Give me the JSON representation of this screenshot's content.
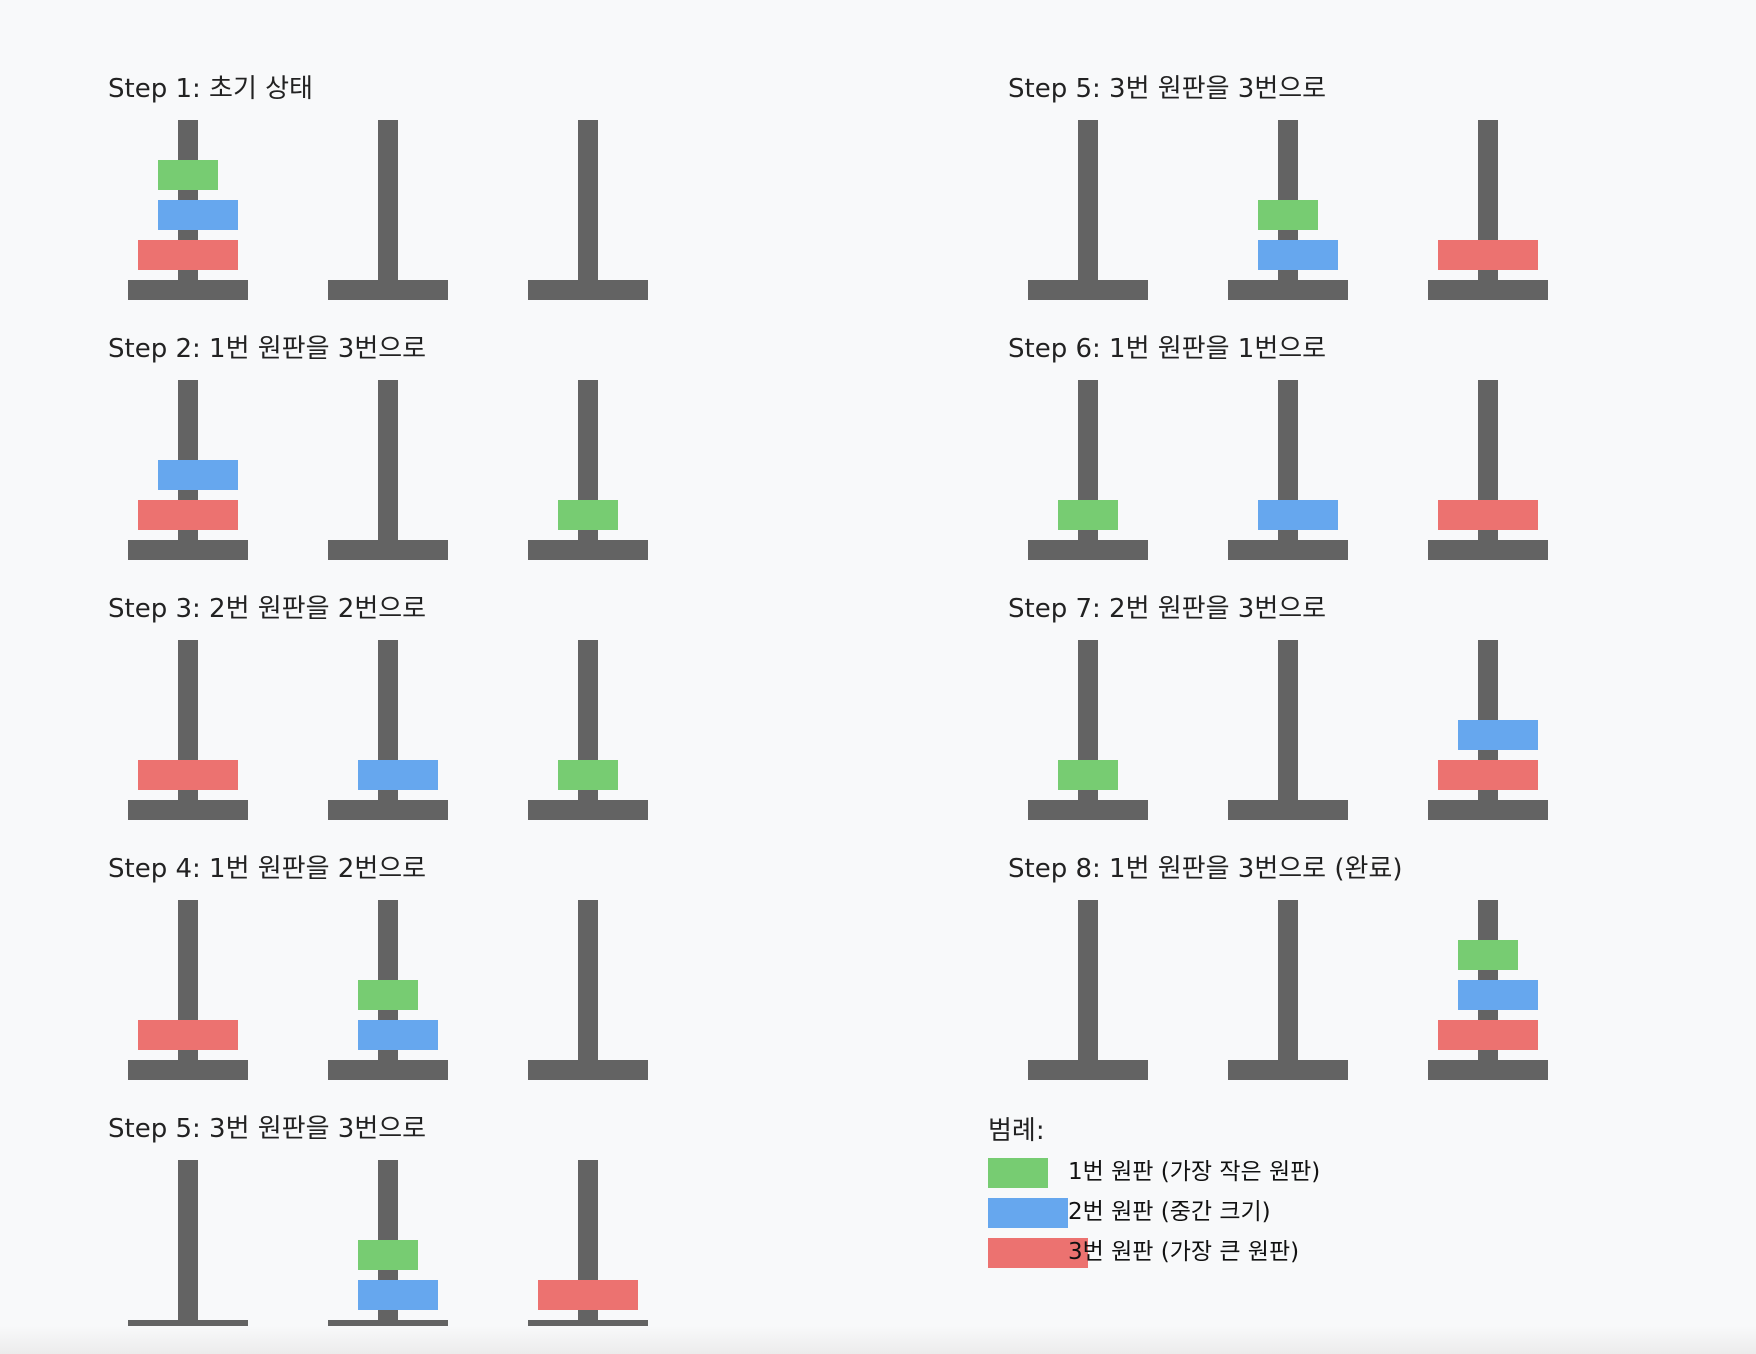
{
  "colors": {
    "pole": "#636363",
    "disk_1": "#77cc72",
    "disk_2": "#66a7ee",
    "disk_3": "#ec7270",
    "background": "#f8f9fa"
  },
  "steps": [
    {
      "title": "Step 1: 초기 상태",
      "pegs": [
        [
          3,
          2,
          1
        ],
        [],
        []
      ]
    },
    {
      "title": "Step 2: 1번 원판을 3번으로",
      "pegs": [
        [
          3,
          2
        ],
        [],
        [
          1
        ]
      ]
    },
    {
      "title": "Step 3: 2번 원판을 2번으로",
      "pegs": [
        [
          3
        ],
        [
          2
        ],
        [
          1
        ]
      ]
    },
    {
      "title": "Step 4: 1번 원판을 2번으로",
      "pegs": [
        [
          3
        ],
        [
          2,
          1
        ],
        []
      ]
    },
    {
      "title": "Step 5: 3번 원판을 3번으로",
      "pegs": [
        [],
        [
          2,
          1
        ],
        [
          3
        ]
      ]
    },
    {
      "title": "Step 5: 3번 원판을 3번으로",
      "pegs": [
        [],
        [
          2,
          1
        ],
        [
          3
        ]
      ]
    },
    {
      "title": "Step 6: 1번 원판을 1번으로",
      "pegs": [
        [
          1
        ],
        [
          2
        ],
        [
          3
        ]
      ]
    },
    {
      "title": "Step 7: 2번 원판을 3번으로",
      "pegs": [
        [
          1
        ],
        [],
        [
          3,
          2
        ]
      ]
    },
    {
      "title": "Step 8: 1번 원판을 3번으로 (완료)",
      "pegs": [
        [],
        [],
        [
          3,
          2,
          1
        ]
      ]
    }
  ],
  "legend": {
    "title": "범례:",
    "items": [
      {
        "label": "1번 원판 (가장 작은 원판)",
        "disk": 1
      },
      {
        "label": "2번 원판 (중간 크기)",
        "disk": 2
      },
      {
        "label": "3번 원판 (가장 큰 원판)",
        "disk": 3
      }
    ]
  }
}
